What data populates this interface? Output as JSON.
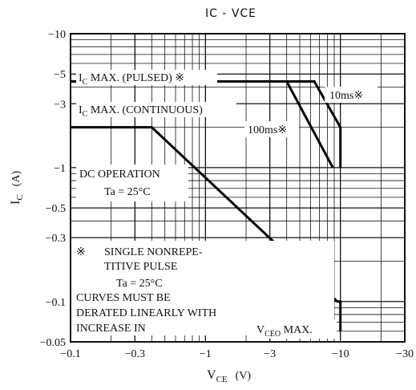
{
  "chart_data": {
    "type": "line",
    "title": "IC - VCE",
    "xlabel": {
      "main": "V",
      "sub": "CE",
      "unit": "(V)"
    },
    "ylabel": {
      "main": "I",
      "sub": "C",
      "unit": "(A)"
    },
    "x_scale": "log",
    "y_scale": "log",
    "xlim": [
      -0.1,
      -30
    ],
    "ylim": [
      -0.05,
      -10
    ],
    "grid": true,
    "x_ticks": [
      {
        "value": -0.1,
        "label": "−0.1"
      },
      {
        "value": -0.3,
        "label": "−0.3"
      },
      {
        "value": -1,
        "label": "−1"
      },
      {
        "value": -3,
        "label": "−3"
      },
      {
        "value": -10,
        "label": "−10"
      },
      {
        "value": -30,
        "label": "−30"
      }
    ],
    "y_ticks": [
      {
        "value": -10,
        "label": "−10"
      },
      {
        "value": -5,
        "label": "−5"
      },
      {
        "value": -3,
        "label": "−3"
      },
      {
        "value": -1,
        "label": "−1"
      },
      {
        "value": -0.5,
        "label": "−0.5"
      },
      {
        "value": -0.3,
        "label": "−0.3"
      },
      {
        "value": -0.1,
        "label": "−0.1"
      },
      {
        "value": -0.05,
        "label": "−0.05"
      }
    ],
    "series": [
      {
        "name": "DC OPERATION",
        "points": [
          [
            -0.1,
            -2.0
          ],
          [
            -0.4,
            -2.0
          ],
          [
            -9.5,
            -0.1
          ],
          [
            -10,
            -0.1
          ],
          [
            -10,
            -0.06
          ]
        ]
      },
      {
        "name": "100ms",
        "points": [
          [
            -0.1,
            -4.4
          ],
          [
            -4.0,
            -4.4
          ],
          [
            -8.8,
            -1.0
          ]
        ]
      },
      {
        "name": "10ms",
        "points": [
          [
            -0.1,
            -4.4
          ],
          [
            -6.4,
            -4.4
          ],
          [
            -10,
            -2.0
          ],
          [
            -10,
            -1.0
          ]
        ]
      }
    ],
    "annotations": {
      "ic_max_pulsed": {
        "main": "I",
        "sub": "C",
        "text": " MAX. (PULSED) ※"
      },
      "ic_max_continuous": {
        "main": "I",
        "sub": "C",
        "text": " MAX. (CONTINUOUS)"
      },
      "ms10": "10ms※",
      "ms100": "100ms※",
      "dc_operation": {
        "line1": "DC OPERATION",
        "line2": "Ta = 25°C"
      },
      "note": {
        "mark": "※",
        "line1": "SINGLE NONREPE-",
        "line2": "TITIVE PULSE",
        "line3": "Ta = 25°C",
        "line4": "CURVES MUST BE",
        "line5": "DERATED LINEARLY WITH",
        "line6": "INCREASE IN"
      },
      "vceo_max": {
        "main": "V",
        "sub": "CEO",
        "text": " MAX."
      }
    }
  }
}
